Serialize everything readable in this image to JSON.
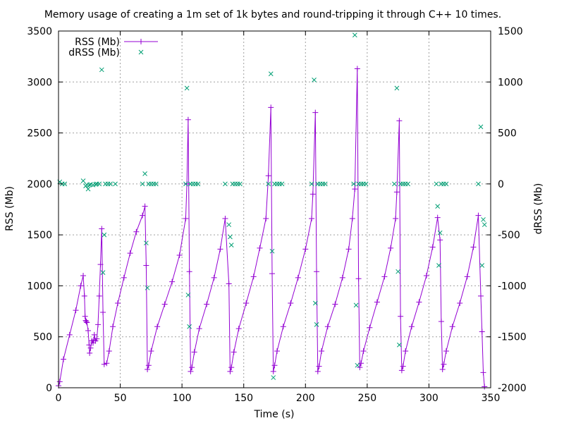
{
  "chart_data": {
    "type": "line",
    "title": "Memory usage of creating a 1m set of 1k bytes and round-tripping it through C++ 10 times.",
    "xlabel": "Time (s)",
    "ylabel": "RSS (Mb)",
    "y2label": "dRSS (Mb)",
    "xlim": [
      0,
      350
    ],
    "ylim": [
      0,
      3500
    ],
    "y2lim": [
      -2000,
      1500
    ],
    "xticks": [
      "0",
      "50",
      "100",
      "150",
      "200",
      "250",
      "300",
      "350"
    ],
    "yticks": [
      "0",
      "500",
      "1000",
      "1500",
      "2000",
      "2500",
      "3000",
      "3500"
    ],
    "y2ticks": [
      "-2000",
      "-1500",
      "-1000",
      "-500",
      "0",
      "500",
      "1000",
      "1500"
    ],
    "grid": true,
    "legend_position": "top-left",
    "series": [
      {
        "name": "RSS (Mb)",
        "axis": "y",
        "style": "linespoints",
        "color": "#9400d3",
        "points": [
          [
            0,
            20
          ],
          [
            1,
            60
          ],
          [
            4,
            280
          ],
          [
            9,
            520
          ],
          [
            14,
            760
          ],
          [
            18,
            1000
          ],
          [
            20,
            1100
          ],
          [
            21,
            900
          ],
          [
            21.5,
            700
          ],
          [
            22,
            660
          ],
          [
            22.5,
            650
          ],
          [
            23,
            640
          ],
          [
            24,
            560
          ],
          [
            24.8,
            420
          ],
          [
            25.2,
            340
          ],
          [
            26,
            390
          ],
          [
            27,
            460
          ],
          [
            28,
            440
          ],
          [
            28.5,
            470
          ],
          [
            29,
            520
          ],
          [
            30,
            460
          ],
          [
            31,
            480
          ],
          [
            32,
            620
          ],
          [
            33,
            900
          ],
          [
            34,
            1210
          ],
          [
            35,
            1560
          ],
          [
            36,
            740
          ],
          [
            37,
            230
          ],
          [
            39,
            240
          ],
          [
            41,
            360
          ],
          [
            44,
            600
          ],
          [
            48,
            830
          ],
          [
            53,
            1080
          ],
          [
            58,
            1320
          ],
          [
            63,
            1530
          ],
          [
            68,
            1690
          ],
          [
            70,
            1780
          ],
          [
            71,
            1200
          ],
          [
            72,
            180
          ],
          [
            73,
            220
          ],
          [
            75,
            360
          ],
          [
            80,
            600
          ],
          [
            86,
            820
          ],
          [
            92,
            1040
          ],
          [
            98,
            1300
          ],
          [
            103,
            1660
          ],
          [
            104,
            2000
          ],
          [
            105,
            2630
          ],
          [
            106,
            1140
          ],
          [
            107,
            160
          ],
          [
            108,
            200
          ],
          [
            110,
            350
          ],
          [
            114,
            580
          ],
          [
            120,
            820
          ],
          [
            126,
            1080
          ],
          [
            131,
            1360
          ],
          [
            135,
            1660
          ],
          [
            138,
            1020
          ],
          [
            139,
            160
          ],
          [
            140,
            200
          ],
          [
            142,
            350
          ],
          [
            146,
            580
          ],
          [
            152,
            830
          ],
          [
            158,
            1090
          ],
          [
            163,
            1370
          ],
          [
            168,
            1660
          ],
          [
            170,
            2080
          ],
          [
            172,
            2750
          ],
          [
            173,
            1120
          ],
          [
            174,
            160
          ],
          [
            175,
            220
          ],
          [
            177,
            360
          ],
          [
            182,
            600
          ],
          [
            188,
            830
          ],
          [
            194,
            1080
          ],
          [
            200,
            1360
          ],
          [
            205,
            1660
          ],
          [
            206,
            1900
          ],
          [
            208,
            2700
          ],
          [
            209,
            1140
          ],
          [
            210,
            160
          ],
          [
            211,
            210
          ],
          [
            213,
            360
          ],
          [
            218,
            600
          ],
          [
            224,
            820
          ],
          [
            230,
            1080
          ],
          [
            235,
            1360
          ],
          [
            238,
            1660
          ],
          [
            240,
            1950
          ],
          [
            242,
            3130
          ],
          [
            243,
            1070
          ],
          [
            244,
            200
          ],
          [
            245,
            240
          ],
          [
            247,
            360
          ],
          [
            252,
            590
          ],
          [
            258,
            840
          ],
          [
            264,
            1090
          ],
          [
            269,
            1370
          ],
          [
            273,
            1660
          ],
          [
            274,
            1920
          ],
          [
            276,
            2620
          ],
          [
            277,
            700
          ],
          [
            278,
            170
          ],
          [
            279,
            210
          ],
          [
            281,
            360
          ],
          [
            286,
            600
          ],
          [
            292,
            840
          ],
          [
            298,
            1100
          ],
          [
            303,
            1380
          ],
          [
            307,
            1670
          ],
          [
            309,
            1450
          ],
          [
            310,
            650
          ],
          [
            311,
            180
          ],
          [
            312,
            230
          ],
          [
            314,
            360
          ],
          [
            319,
            600
          ],
          [
            325,
            830
          ],
          [
            331,
            1090
          ],
          [
            336,
            1380
          ],
          [
            340,
            1690
          ],
          [
            342,
            900
          ],
          [
            343,
            550
          ],
          [
            344,
            150
          ],
          [
            345,
            10
          ]
        ]
      },
      {
        "name": "dRSS (Mb)",
        "axis": "y2",
        "style": "points",
        "color": "#009e73",
        "points": [
          [
            1,
            20
          ],
          [
            3,
            0
          ],
          [
            5,
            0
          ],
          [
            20,
            30
          ],
          [
            22,
            -20
          ],
          [
            23,
            -10
          ],
          [
            24,
            -50
          ],
          [
            25,
            -10
          ],
          [
            26,
            -5
          ],
          [
            28,
            -10
          ],
          [
            30,
            -5
          ],
          [
            31,
            0
          ],
          [
            33,
            0
          ],
          [
            35,
            1120
          ],
          [
            36,
            -870
          ],
          [
            37,
            -500
          ],
          [
            38,
            0
          ],
          [
            40,
            0
          ],
          [
            42,
            0
          ],
          [
            46,
            0
          ],
          [
            68,
            0
          ],
          [
            70,
            100
          ],
          [
            71,
            -580
          ],
          [
            72,
            -1020
          ],
          [
            73,
            0
          ],
          [
            75,
            0
          ],
          [
            77,
            0
          ],
          [
            79,
            0
          ],
          [
            103,
            0
          ],
          [
            104,
            940
          ],
          [
            105,
            -1090
          ],
          [
            106,
            -1400
          ],
          [
            107,
            0
          ],
          [
            109,
            0
          ],
          [
            111,
            0
          ],
          [
            113,
            0
          ],
          [
            135,
            0
          ],
          [
            138,
            -400
          ],
          [
            139,
            -520
          ],
          [
            140,
            -600
          ],
          [
            141,
            0
          ],
          [
            143,
            0
          ],
          [
            145,
            0
          ],
          [
            147,
            0
          ],
          [
            170,
            0
          ],
          [
            172,
            1080
          ],
          [
            173,
            -660
          ],
          [
            174,
            -1900
          ],
          [
            175,
            0
          ],
          [
            177,
            0
          ],
          [
            179,
            0
          ],
          [
            181,
            0
          ],
          [
            205,
            0
          ],
          [
            207,
            1020
          ],
          [
            208,
            -1170
          ],
          [
            209,
            -1380
          ],
          [
            210,
            0
          ],
          [
            212,
            0
          ],
          [
            214,
            0
          ],
          [
            216,
            0
          ],
          [
            239,
            0
          ],
          [
            240,
            1460
          ],
          [
            241,
            -1190
          ],
          [
            242,
            -1780
          ],
          [
            243,
            0
          ],
          [
            245,
            0
          ],
          [
            247,
            0
          ],
          [
            249,
            0
          ],
          [
            272,
            0
          ],
          [
            274,
            940
          ],
          [
            275,
            -860
          ],
          [
            276,
            -1580
          ],
          [
            277,
            0
          ],
          [
            279,
            0
          ],
          [
            281,
            0
          ],
          [
            283,
            0
          ],
          [
            306,
            0
          ],
          [
            307,
            -220
          ],
          [
            308,
            -800
          ],
          [
            309,
            -480
          ],
          [
            310,
            0
          ],
          [
            312,
            0
          ],
          [
            314,
            0
          ],
          [
            340,
            0
          ],
          [
            342,
            560
          ],
          [
            343,
            -800
          ],
          [
            344,
            -350
          ],
          [
            345,
            -400
          ]
        ]
      }
    ]
  }
}
